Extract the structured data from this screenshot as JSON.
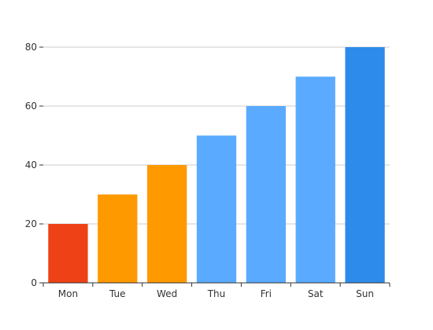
{
  "chart_data": {
    "type": "bar",
    "title": "",
    "xlabel": "",
    "ylabel": "",
    "categories": [
      "Mon",
      "Tue",
      "Wed",
      "Thu",
      "Fri",
      "Sat",
      "Sun"
    ],
    "values": [
      20,
      30,
      40,
      50,
      60,
      70,
      80
    ],
    "bar_colors": [
      "#ee4115",
      "#ff9900",
      "#ff9900",
      "#5aabff",
      "#5aabff",
      "#5aabff",
      "#2d8ceb"
    ],
    "ylim": [
      0,
      80
    ],
    "yticks": [
      0,
      20,
      40,
      60,
      80
    ],
    "grid": true,
    "legend": "none"
  }
}
